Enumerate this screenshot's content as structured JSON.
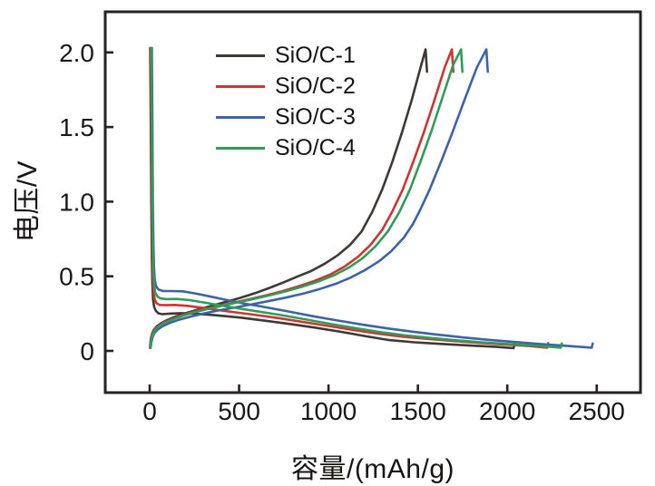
{
  "chart_data": {
    "type": "line",
    "title": "",
    "xlabel": "容量/(mAh/g)",
    "ylabel": "电压/V",
    "x_tick_labels": [
      "0",
      "500",
      "1000",
      "1500",
      "2000",
      "2500"
    ],
    "x_ticks": [
      0,
      500,
      1000,
      1500,
      2000,
      2500
    ],
    "y_tick_labels": [
      "0",
      "0.5",
      "1.0",
      "1.5",
      "2.0"
    ],
    "y_ticks": [
      0,
      0.5,
      1.0,
      1.5,
      2.0
    ],
    "xlim": [
      -250,
      2760
    ],
    "ylim": [
      -0.28,
      2.27
    ],
    "grid": false,
    "legend_position": "upper-center-left-inside",
    "axis_color": "#262222",
    "series": [
      {
        "name": "SiO/C-1",
        "color": "#3e3837",
        "discharge": [
          [
            3,
            2.03
          ],
          [
            6,
            1.5
          ],
          [
            9,
            1.0
          ],
          [
            12,
            0.62
          ],
          [
            15,
            0.44
          ],
          [
            19,
            0.345
          ],
          [
            25,
            0.295
          ],
          [
            34,
            0.27
          ],
          [
            48,
            0.252
          ],
          [
            70,
            0.246
          ],
          [
            110,
            0.25
          ],
          [
            170,
            0.253
          ],
          [
            250,
            0.25
          ],
          [
            340,
            0.242
          ],
          [
            430,
            0.232
          ],
          [
            520,
            0.221
          ],
          [
            640,
            0.203
          ],
          [
            780,
            0.181
          ],
          [
            920,
            0.157
          ],
          [
            1060,
            0.13
          ],
          [
            1200,
            0.1
          ],
          [
            1340,
            0.072
          ],
          [
            1480,
            0.058
          ],
          [
            1630,
            0.047
          ],
          [
            1780,
            0.037
          ],
          [
            1930,
            0.028
          ],
          [
            2035,
            0.018
          ],
          [
            2041,
            0.05
          ]
        ],
        "charge": [
          [
            2,
            0.02
          ],
          [
            4,
            0.055
          ],
          [
            8,
            0.09
          ],
          [
            14,
            0.118
          ],
          [
            24,
            0.143
          ],
          [
            40,
            0.165
          ],
          [
            65,
            0.186
          ],
          [
            100,
            0.208
          ],
          [
            145,
            0.23
          ],
          [
            200,
            0.252
          ],
          [
            265,
            0.275
          ],
          [
            340,
            0.3
          ],
          [
            420,
            0.326
          ],
          [
            505,
            0.355
          ],
          [
            590,
            0.387
          ],
          [
            670,
            0.422
          ],
          [
            750,
            0.46
          ],
          [
            830,
            0.5
          ],
          [
            903,
            0.535
          ],
          [
            980,
            0.585
          ],
          [
            1050,
            0.64
          ],
          [
            1120,
            0.71
          ],
          [
            1185,
            0.8
          ],
          [
            1244,
            0.93
          ],
          [
            1300,
            1.08
          ],
          [
            1355,
            1.26
          ],
          [
            1410,
            1.46
          ],
          [
            1465,
            1.68
          ],
          [
            1515,
            1.9
          ],
          [
            1543,
            2.02
          ],
          [
            1551,
            1.87
          ]
        ]
      },
      {
        "name": "SiO/C-2",
        "color": "#cd3532",
        "discharge": [
          [
            6,
            2.03
          ],
          [
            9,
            1.5
          ],
          [
            12,
            1.0
          ],
          [
            15,
            0.66
          ],
          [
            18,
            0.48
          ],
          [
            22,
            0.39
          ],
          [
            28,
            0.345
          ],
          [
            38,
            0.32
          ],
          [
            55,
            0.308
          ],
          [
            90,
            0.306
          ],
          [
            140,
            0.308
          ],
          [
            210,
            0.302
          ],
          [
            300,
            0.288
          ],
          [
            390,
            0.273
          ],
          [
            480,
            0.258
          ],
          [
            580,
            0.243
          ],
          [
            720,
            0.22
          ],
          [
            860,
            0.193
          ],
          [
            1000,
            0.167
          ],
          [
            1140,
            0.14
          ],
          [
            1280,
            0.115
          ],
          [
            1420,
            0.095
          ],
          [
            1560,
            0.08
          ],
          [
            1700,
            0.066
          ],
          [
            1840,
            0.054
          ],
          [
            1980,
            0.043
          ],
          [
            2120,
            0.033
          ],
          [
            2223,
            0.022
          ],
          [
            2229,
            0.052
          ]
        ],
        "charge": [
          [
            3,
            0.02
          ],
          [
            5,
            0.055
          ],
          [
            10,
            0.09
          ],
          [
            18,
            0.12
          ],
          [
            30,
            0.146
          ],
          [
            50,
            0.168
          ],
          [
            80,
            0.19
          ],
          [
            120,
            0.212
          ],
          [
            170,
            0.235
          ],
          [
            230,
            0.257
          ],
          [
            300,
            0.278
          ],
          [
            380,
            0.3
          ],
          [
            470,
            0.323
          ],
          [
            560,
            0.347
          ],
          [
            650,
            0.372
          ],
          [
            740,
            0.4
          ],
          [
            830,
            0.432
          ],
          [
            920,
            0.468
          ],
          [
            1010,
            0.512
          ],
          [
            1090,
            0.565
          ],
          [
            1165,
            0.63
          ],
          [
            1235,
            0.71
          ],
          [
            1300,
            0.81
          ],
          [
            1355,
            0.93
          ],
          [
            1415,
            1.08
          ],
          [
            1475,
            1.27
          ],
          [
            1535,
            1.47
          ],
          [
            1595,
            1.69
          ],
          [
            1650,
            1.9
          ],
          [
            1690,
            2.02
          ],
          [
            1698,
            1.87
          ]
        ]
      },
      {
        "name": "SiO/C-3",
        "color": "#3c63a7",
        "discharge": [
          [
            12,
            2.03
          ],
          [
            15,
            1.5
          ],
          [
            18,
            1.0
          ],
          [
            21,
            0.73
          ],
          [
            24,
            0.57
          ],
          [
            28,
            0.48
          ],
          [
            35,
            0.435
          ],
          [
            48,
            0.412
          ],
          [
            75,
            0.401
          ],
          [
            120,
            0.401
          ],
          [
            185,
            0.399
          ],
          [
            265,
            0.383
          ],
          [
            355,
            0.36
          ],
          [
            445,
            0.337
          ],
          [
            535,
            0.316
          ],
          [
            635,
            0.295
          ],
          [
            775,
            0.264
          ],
          [
            915,
            0.232
          ],
          [
            1055,
            0.203
          ],
          [
            1195,
            0.175
          ],
          [
            1335,
            0.15
          ],
          [
            1475,
            0.128
          ],
          [
            1615,
            0.108
          ],
          [
            1755,
            0.09
          ],
          [
            1895,
            0.074
          ],
          [
            2035,
            0.06
          ],
          [
            2175,
            0.047
          ],
          [
            2315,
            0.035
          ],
          [
            2420,
            0.026
          ],
          [
            2472,
            0.021
          ],
          [
            2478,
            0.05
          ]
        ],
        "charge": [
          [
            5,
            0.02
          ],
          [
            9,
            0.055
          ],
          [
            15,
            0.09
          ],
          [
            26,
            0.118
          ],
          [
            44,
            0.143
          ],
          [
            72,
            0.165
          ],
          [
            112,
            0.187
          ],
          [
            162,
            0.208
          ],
          [
            222,
            0.228
          ],
          [
            292,
            0.248
          ],
          [
            372,
            0.268
          ],
          [
            462,
            0.288
          ],
          [
            562,
            0.31
          ],
          [
            662,
            0.333
          ],
          [
            762,
            0.357
          ],
          [
            862,
            0.385
          ],
          [
            952,
            0.415
          ],
          [
            1042,
            0.45
          ],
          [
            1122,
            0.49
          ],
          [
            1202,
            0.54
          ],
          [
            1282,
            0.6
          ],
          [
            1352,
            0.67
          ],
          [
            1422,
            0.76
          ],
          [
            1472,
            0.85
          ],
          [
            1507,
            0.93
          ],
          [
            1565,
            1.08
          ],
          [
            1630,
            1.27
          ],
          [
            1695,
            1.47
          ],
          [
            1760,
            1.68
          ],
          [
            1830,
            1.9
          ],
          [
            1883,
            2.02
          ],
          [
            1891,
            1.87
          ]
        ]
      },
      {
        "name": "SiO/C-4",
        "color": "#2f9d58",
        "discharge": [
          [
            9,
            2.03
          ],
          [
            12,
            1.5
          ],
          [
            15,
            1.0
          ],
          [
            18,
            0.7
          ],
          [
            21,
            0.53
          ],
          [
            25,
            0.44
          ],
          [
            31,
            0.39
          ],
          [
            42,
            0.365
          ],
          [
            60,
            0.352
          ],
          [
            95,
            0.347
          ],
          [
            150,
            0.348
          ],
          [
            225,
            0.34
          ],
          [
            315,
            0.322
          ],
          [
            405,
            0.303
          ],
          [
            495,
            0.285
          ],
          [
            595,
            0.266
          ],
          [
            735,
            0.24
          ],
          [
            875,
            0.21
          ],
          [
            1015,
            0.18
          ],
          [
            1155,
            0.152
          ],
          [
            1295,
            0.125
          ],
          [
            1435,
            0.103
          ],
          [
            1575,
            0.086
          ],
          [
            1715,
            0.071
          ],
          [
            1855,
            0.058
          ],
          [
            1995,
            0.047
          ],
          [
            2135,
            0.037
          ],
          [
            2240,
            0.028
          ],
          [
            2299,
            0.022
          ],
          [
            2305,
            0.05
          ]
        ],
        "charge": [
          [
            4,
            0.02
          ],
          [
            7,
            0.055
          ],
          [
            12,
            0.09
          ],
          [
            21,
            0.12
          ],
          [
            35,
            0.148
          ],
          [
            58,
            0.17
          ],
          [
            92,
            0.192
          ],
          [
            135,
            0.214
          ],
          [
            188,
            0.237
          ],
          [
            250,
            0.258
          ],
          [
            322,
            0.28
          ],
          [
            402,
            0.302
          ],
          [
            492,
            0.325
          ],
          [
            582,
            0.348
          ],
          [
            672,
            0.373
          ],
          [
            762,
            0.4
          ],
          [
            852,
            0.43
          ],
          [
            942,
            0.465
          ],
          [
            1032,
            0.507
          ],
          [
            1112,
            0.557
          ],
          [
            1190,
            0.62
          ],
          [
            1262,
            0.7
          ],
          [
            1332,
            0.8
          ],
          [
            1396,
            0.93
          ],
          [
            1455,
            1.08
          ],
          [
            1515,
            1.27
          ],
          [
            1575,
            1.47
          ],
          [
            1635,
            1.69
          ],
          [
            1695,
            1.91
          ],
          [
            1741,
            2.02
          ],
          [
            1749,
            1.87
          ]
        ]
      }
    ]
  }
}
